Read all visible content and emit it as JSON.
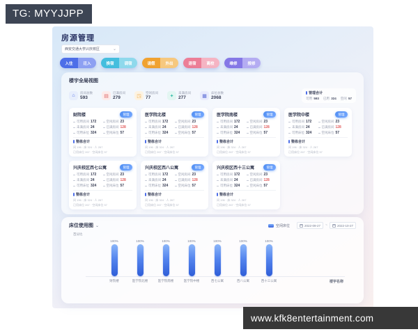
{
  "watermarks": {
    "top_left": "TG: MYYJJPP",
    "bottom_right": "www.kfk8entertainment.com"
  },
  "header": {
    "title": "房源管理"
  },
  "campus_select": {
    "value": "西安交通大学兴庆校区",
    "chevron": "⌄"
  },
  "actions": [
    {
      "left": "入住",
      "right": "迁入",
      "left_color": "#4d6ee8",
      "right_color": "#8da0f2"
    },
    {
      "left": "换宿",
      "right": "调宿",
      "left_color": "#45bede",
      "right_color": "#8fd9ec"
    },
    {
      "left": "请假",
      "right": "外出",
      "left_color": "#f0a231",
      "right_color": "#f6c87f"
    },
    {
      "left": "退宿",
      "right": "离校",
      "left_color": "#ec7e97",
      "right_color": "#f5b4c3"
    },
    {
      "left": "维修",
      "right": "报修",
      "left_color": "#8578e6",
      "right_color": "#b4acf2"
    }
  ],
  "overview": {
    "title": "楼宇全局视图",
    "stats": [
      {
        "icon": "building-icon",
        "glyph": "⌂",
        "label": "房间总数",
        "value": "593",
        "icon_bg": "#e7eefc",
        "icon_fg": "#4d6ee8"
      },
      {
        "icon": "full-rooms-icon",
        "glyph": "▤",
        "label": "已满房间",
        "value": "279",
        "icon_bg": "#fdeceb",
        "icon_fg": "#e06a6a"
      },
      {
        "icon": "empty-rooms-icon",
        "glyph": "◳",
        "label": "空闲房间",
        "value": "77",
        "icon_bg": "#fdf3e2",
        "icon_fg": "#eda53c"
      },
      {
        "icon": "partial-rooms-icon",
        "glyph": "✦",
        "label": "未满房间",
        "value": "277",
        "icon_bg": "#e3f6f2",
        "icon_fg": "#3cbfae"
      },
      {
        "icon": "beds-icon",
        "glyph": "▦",
        "label": "床位总数",
        "value": "2068",
        "icon_bg": "#e9ebfd",
        "icon_fg": "#5c6cd6"
      }
    ],
    "summary": {
      "title": "管理合计",
      "items": [
        {
          "label": "可用",
          "value": "593"
        },
        {
          "label": "已用",
          "value": "324"
        },
        {
          "label": "空闲",
          "value": "57"
        }
      ]
    },
    "manage_button_label": "管理",
    "totals_title": "整栋合计",
    "buildings": [
      {
        "name": "财院楼",
        "stats": [
          {
            "label": "可用房间",
            "value": "172"
          },
          {
            "label": "空闲房间",
            "value": "23"
          },
          {
            "label": "未满房间",
            "value": "24"
          },
          {
            "label": "已满房间",
            "value": "128",
            "red": true
          },
          {
            "label": "可用床位",
            "value": "324"
          },
          {
            "label": "空闲床位",
            "value": "57"
          }
        ],
        "totals_line1": "间 196 · 床 324 · 人 267",
        "totals_line2": "已用床位 267 · 空闲床位 57"
      },
      {
        "name": "医学院北楼",
        "stats": [
          {
            "label": "可用房间",
            "value": "172"
          },
          {
            "label": "空闲房间",
            "value": "23"
          },
          {
            "label": "未满房间",
            "value": "24"
          },
          {
            "label": "已满房间",
            "value": "128",
            "red": true
          },
          {
            "label": "可用床位",
            "value": "324"
          },
          {
            "label": "空闲床位",
            "value": "57"
          }
        ],
        "totals_line1": "间 196 · 床 324 · 人 267",
        "totals_line2": "已用床位 267 · 空闲床位 57"
      },
      {
        "name": "医学院南楼",
        "stats": [
          {
            "label": "可用房间",
            "value": "172"
          },
          {
            "label": "空闲房间",
            "value": "23"
          },
          {
            "label": "未满房间",
            "value": "24"
          },
          {
            "label": "已满房间",
            "value": "128",
            "red": true
          },
          {
            "label": "可用床位",
            "value": "324"
          },
          {
            "label": "空闲床位",
            "value": "57"
          }
        ],
        "totals_line1": "间 196 · 床 324 · 人 267",
        "totals_line2": "已用床位 267 · 空闲床位 57"
      },
      {
        "name": "医学院中楼",
        "stats": [
          {
            "label": "可用房间",
            "value": "172"
          },
          {
            "label": "空闲房间",
            "value": "23"
          },
          {
            "label": "未满房间",
            "value": "24"
          },
          {
            "label": "已满房间",
            "value": "128",
            "red": true
          },
          {
            "label": "可用床位",
            "value": "324"
          },
          {
            "label": "空闲床位",
            "value": "57"
          }
        ],
        "totals_line1": "间 196 · 床 324 · 人 267",
        "totals_line2": "已用床位 267 · 空闲床位 57"
      },
      {
        "name": "兴庆校区西七公寓",
        "stats": [
          {
            "label": "可用房间",
            "value": "172"
          },
          {
            "label": "空闲房间",
            "value": "23"
          },
          {
            "label": "未满房间",
            "value": "24"
          },
          {
            "label": "已满房间",
            "value": "128",
            "red": true
          },
          {
            "label": "可用床位",
            "value": "324"
          },
          {
            "label": "空闲床位",
            "value": "57"
          }
        ],
        "totals_line1": "间 196 · 床 324 · 人 267",
        "totals_line2": "已用床位 267 · 空闲床位 57"
      },
      {
        "name": "兴庆校区西八公寓",
        "stats": [
          {
            "label": "可用房间",
            "value": "172"
          },
          {
            "label": "空闲房间",
            "value": "23"
          },
          {
            "label": "未满房间",
            "value": "24"
          },
          {
            "label": "已满房间",
            "value": "128",
            "red": true
          },
          {
            "label": "可用床位",
            "value": "324"
          },
          {
            "label": "空闲床位",
            "value": "57"
          }
        ],
        "totals_line1": "间 196 · 床 324 · 人 267",
        "totals_line2": "已用床位 267 · 空闲床位 57"
      },
      {
        "name": "兴庆校区西十三公寓",
        "stats": [
          {
            "label": "可用房间",
            "value": "172"
          },
          {
            "label": "空闲房间",
            "value": "23"
          },
          {
            "label": "未满房间",
            "value": "24"
          },
          {
            "label": "已满房间",
            "value": "128",
            "red": true
          },
          {
            "label": "可用床位",
            "value": "324"
          },
          {
            "label": "空闲床位",
            "value": "57"
          }
        ],
        "totals_line1": "间 196 · 床 324 · 人 267",
        "totals_line2": "已用床位 267 · 空闲床位 57"
      }
    ]
  },
  "chart": {
    "title": "床位使用图",
    "chevron": "⌄",
    "legend": "空闲床位",
    "date_from": "2022-09-27",
    "date_to": "2022-10-27",
    "separator": "~"
  },
  "chart_data": {
    "type": "bar",
    "title": "床位使用图",
    "categories": [
      "财院楼",
      "医学院北楼",
      "医学院南楼",
      "医学院中楼",
      "西七公寓",
      "西八公寓",
      "西十三公寓"
    ],
    "values": [
      100,
      100,
      100,
      100,
      100,
      100,
      100
    ],
    "value_suffix": "%",
    "xlabel": "楼宇名称",
    "ylabel": "百分比",
    "ylim": [
      0,
      100
    ],
    "legend": [
      "空闲床位"
    ],
    "legend_position": "top-right",
    "grid": false,
    "bar_color_gradient": [
      "#8ab5f9",
      "#2f5ed8"
    ]
  },
  "colors": {
    "accent_blue": "#4d6ee8",
    "danger_red": "#e25d5d",
    "watermark_dark": "#3d4554",
    "bar_bottom": "#3a3a3a"
  }
}
